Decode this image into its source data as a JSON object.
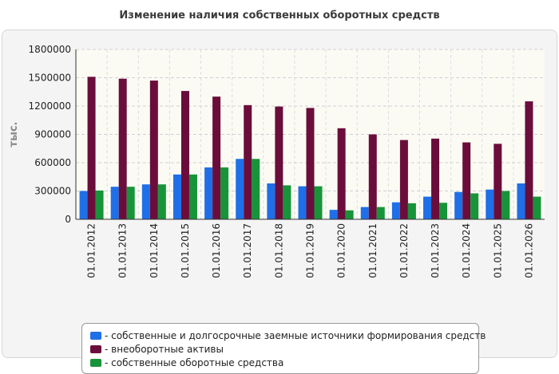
{
  "chart_data": {
    "type": "bar",
    "title": "Изменение наличия собственных оборотных средств",
    "ylabel": "тыс.",
    "xlabel": "",
    "ylim": [
      0,
      1800000
    ],
    "yticks": [
      "0",
      "300000",
      "600000",
      "900000",
      "1200000",
      "1500000",
      "1800000"
    ],
    "grid": true,
    "legend_position": "bottom",
    "categories": [
      "01.01.2012",
      "01.01.2013",
      "01.01.2014",
      "01.01.2015",
      "01.01.2016",
      "01.01.2017",
      "01.01.2018",
      "01.01.2019",
      "01.01.2020",
      "01.01.2021",
      "01.01.2022",
      "01.01.2023",
      "01.01.2024",
      "01.01.2025",
      "01.01.2026"
    ],
    "series": [
      {
        "name": "- собственные и долгосрочные заемные источники формирования средств",
        "color": "#1f6fe8",
        "values": [
          300000,
          345000,
          370000,
          475000,
          550000,
          640000,
          380000,
          350000,
          100000,
          130000,
          180000,
          240000,
          290000,
          315000,
          380000
        ]
      },
      {
        "name": "- внеоборотные активы",
        "color": "#6b0d3a",
        "values": [
          1510000,
          1490000,
          1470000,
          1360000,
          1300000,
          1210000,
          1195000,
          1180000,
          965000,
          900000,
          840000,
          855000,
          815000,
          800000,
          1250000
        ]
      },
      {
        "name": "- собственные оборотные средства",
        "color": "#17943a",
        "values": [
          305000,
          345000,
          370000,
          475000,
          550000,
          640000,
          360000,
          350000,
          95000,
          130000,
          170000,
          175000,
          275000,
          300000,
          240000
        ]
      }
    ]
  }
}
